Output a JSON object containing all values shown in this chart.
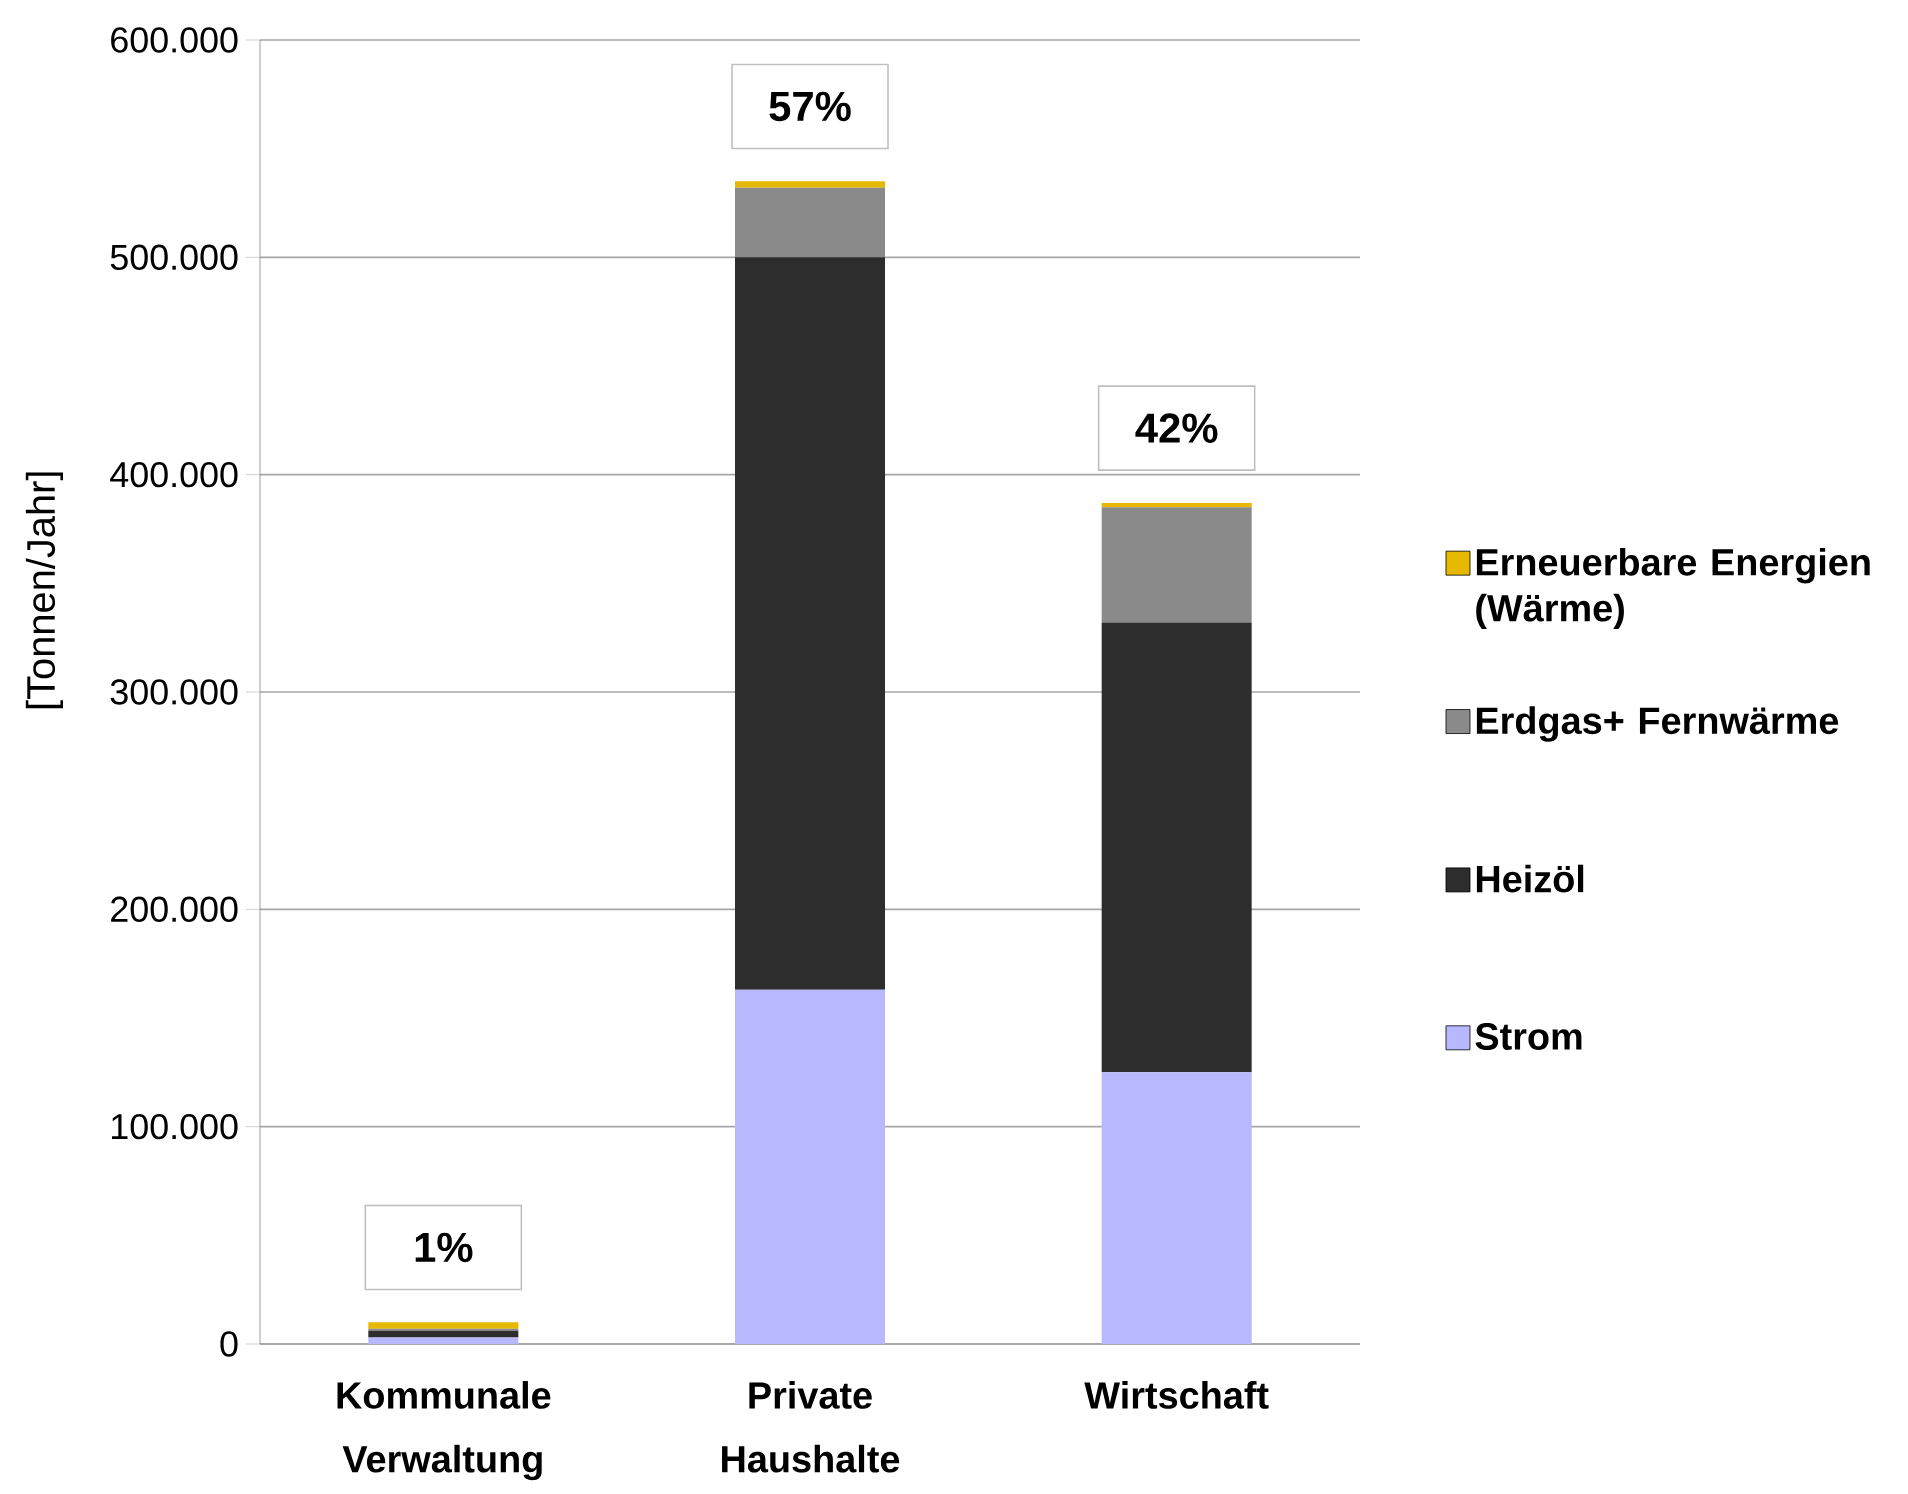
{
  "chart_data": {
    "type": "bar",
    "stacked": true,
    "ylabel": "[Tonnen/Jahr]",
    "categories": [
      "Kommunale Verwaltung",
      "Private Haushalte",
      "Wirtschaft"
    ],
    "series": [
      {
        "name": "Strom",
        "color": "#b8b8ff",
        "values": [
          3000,
          163000,
          125000
        ]
      },
      {
        "name": "Heizöl",
        "color": "#2d2d2d",
        "values": [
          3000,
          337000,
          207000
        ]
      },
      {
        "name": "Erdgas+ Fernwärme",
        "color": "#8a8a8a",
        "values": [
          1000,
          32000,
          53000
        ]
      },
      {
        "name": "Erneuerbare Energien (Wärme)",
        "color": "#e6b800",
        "values": [
          3000,
          3000,
          2000
        ]
      }
    ],
    "annotations": [
      {
        "text": "1%",
        "x": "Kommunale Verwaltung",
        "y": 10000
      },
      {
        "text": "57%",
        "x": "Private Haushalte",
        "y": 535000
      },
      {
        "text": "42%",
        "x": "Wirtschaft",
        "y": 387000
      }
    ],
    "ylim": [
      0,
      600000
    ],
    "yticks": [
      0,
      {
        "value": 100000,
        "label": "100.000"
      },
      {
        "value": 200000,
        "label": "200.000"
      },
      {
        "value": 300000,
        "label": "300.000"
      },
      {
        "value": 400000,
        "label": "400.000"
      },
      {
        "value": 500000,
        "label": "500.000"
      },
      {
        "value": 600000,
        "label": "600.000"
      }
    ],
    "grid": "y",
    "legend": "right"
  }
}
